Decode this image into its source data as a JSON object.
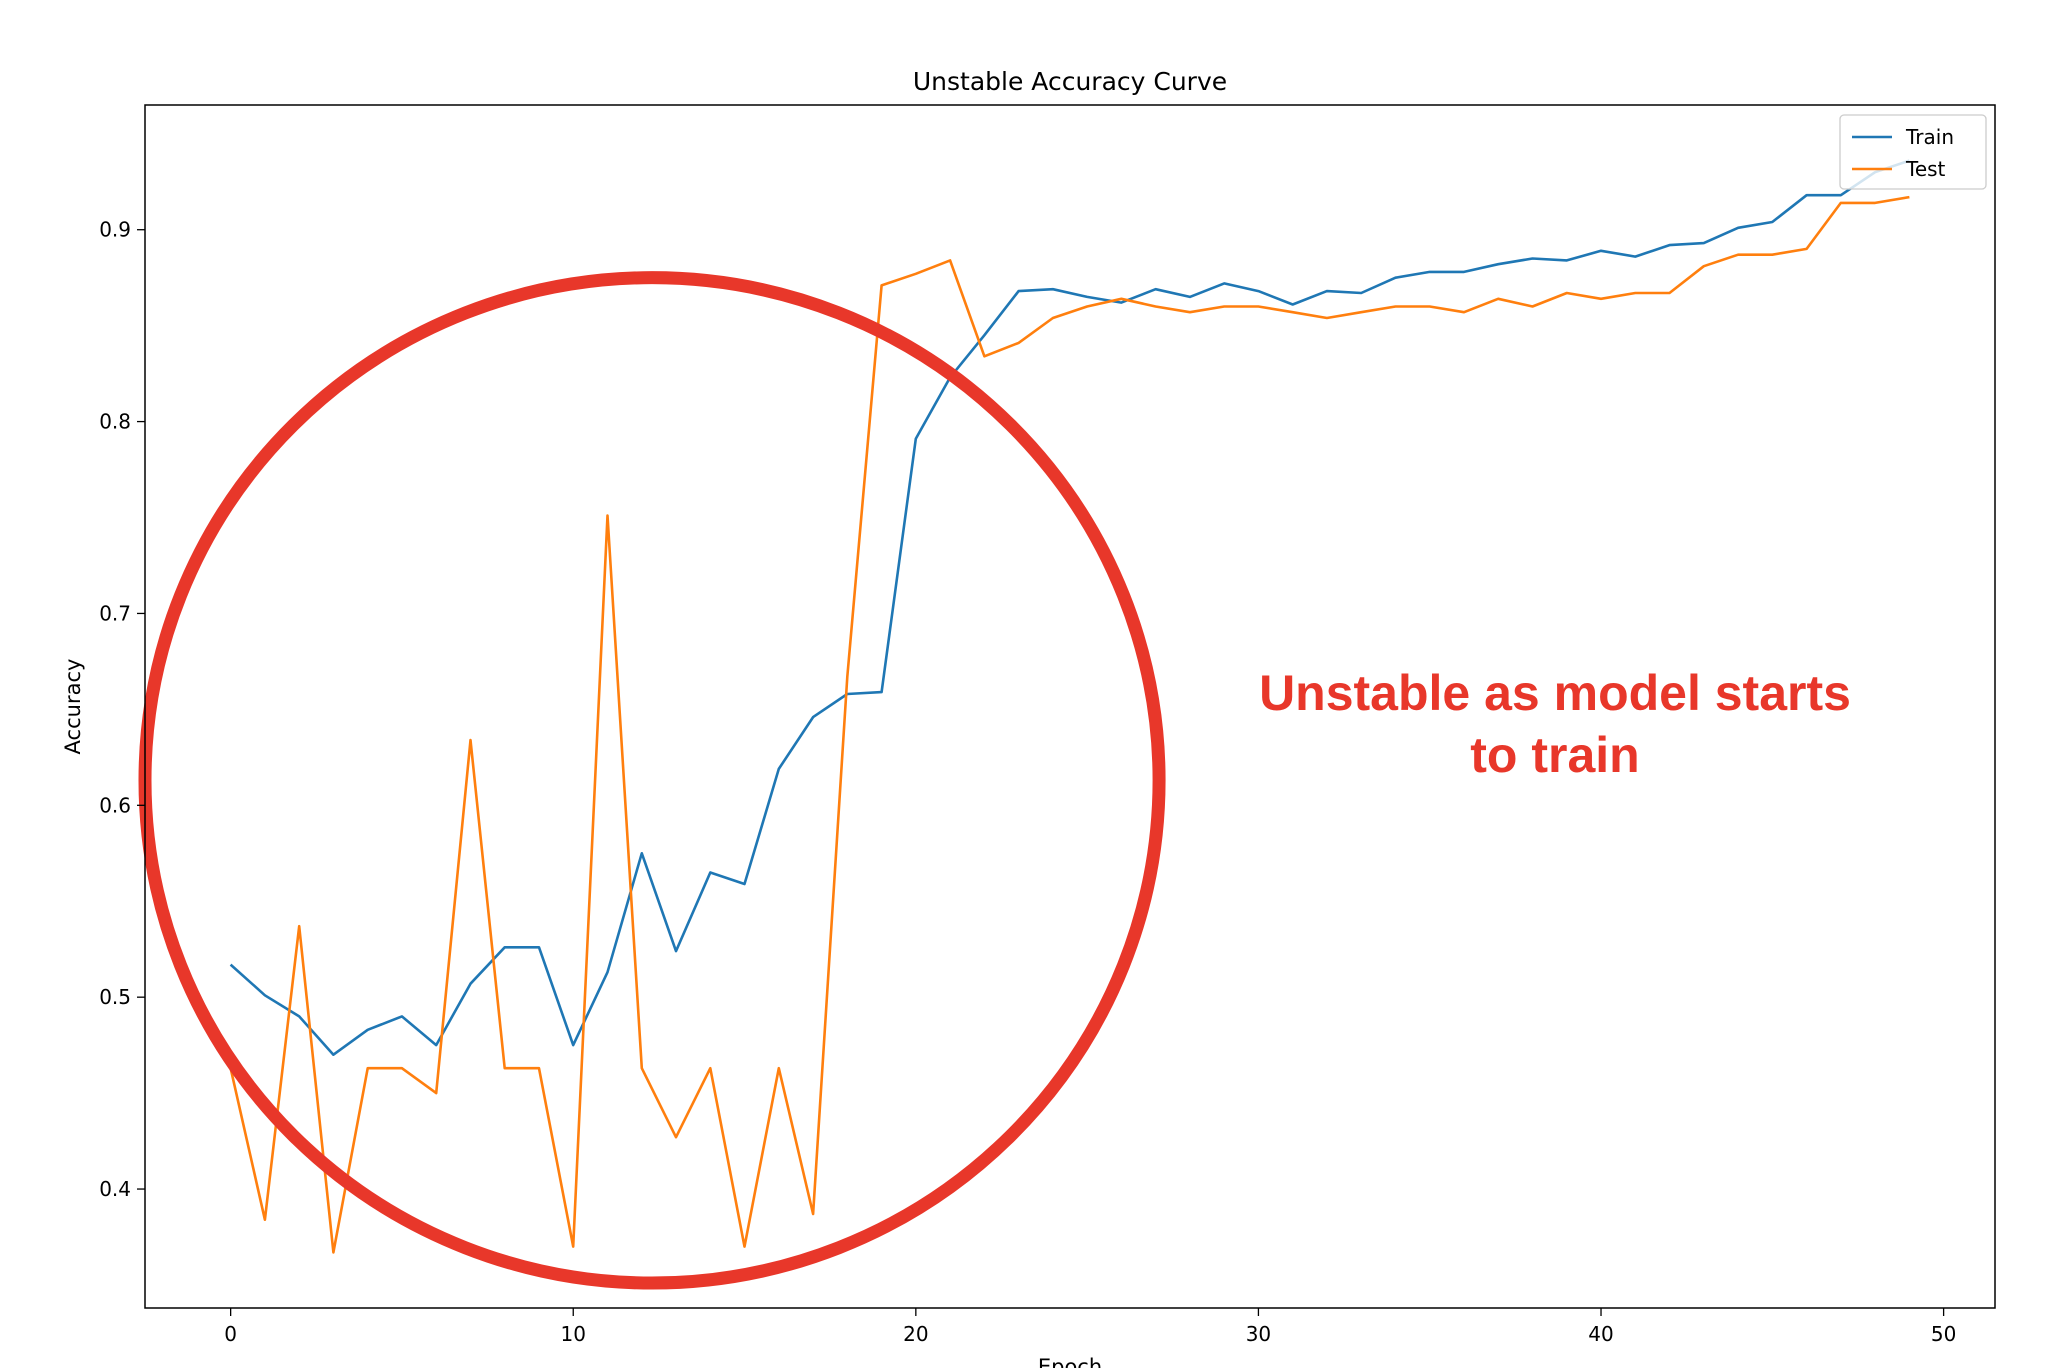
{
  "chart_data": {
    "type": "line",
    "title": "Unstable Accuracy Curve",
    "xlabel": "Epoch",
    "ylabel": "Accuracy",
    "xlim": [
      -2.5,
      51.5
    ],
    "ylim": [
      0.338,
      0.965
    ],
    "x_ticks": [
      0,
      10,
      20,
      30,
      40,
      50
    ],
    "y_ticks": [
      0.4,
      0.5,
      0.6,
      0.7,
      0.8,
      0.9
    ],
    "grid": false,
    "legend_position": "top-right",
    "x": [
      0,
      1,
      2,
      3,
      4,
      5,
      6,
      7,
      8,
      9,
      10,
      11,
      12,
      13,
      14,
      15,
      16,
      17,
      18,
      19,
      20,
      21,
      22,
      23,
      24,
      25,
      26,
      27,
      28,
      29,
      30,
      31,
      32,
      33,
      34,
      35,
      36,
      37,
      38,
      39,
      40,
      41,
      42,
      43,
      44,
      45,
      46,
      47,
      48,
      49
    ],
    "series": [
      {
        "name": "Train",
        "color": "#1f77b4",
        "values": [
          0.517,
          0.501,
          0.49,
          0.47,
          0.483,
          0.49,
          0.475,
          0.507,
          0.526,
          0.526,
          0.475,
          0.513,
          0.575,
          0.524,
          0.565,
          0.559,
          0.619,
          0.646,
          0.658,
          0.659,
          0.791,
          0.823,
          0.845,
          0.868,
          0.869,
          0.865,
          0.862,
          0.869,
          0.865,
          0.872,
          0.868,
          0.861,
          0.868,
          0.867,
          0.875,
          0.878,
          0.878,
          0.882,
          0.885,
          0.884,
          0.889,
          0.886,
          0.892,
          0.893,
          0.901,
          0.904,
          0.918,
          0.918,
          0.93,
          0.936
        ]
      },
      {
        "name": "Test",
        "color": "#ff7f0e",
        "values": [
          0.463,
          0.384,
          0.537,
          0.367,
          0.463,
          0.463,
          0.45,
          0.634,
          0.463,
          0.463,
          0.37,
          0.751,
          0.463,
          0.427,
          0.463,
          0.37,
          0.463,
          0.387,
          0.667,
          0.871,
          0.877,
          0.884,
          0.834,
          0.841,
          0.854,
          0.86,
          0.864,
          0.86,
          0.857,
          0.86,
          0.86,
          0.857,
          0.854,
          0.857,
          0.86,
          0.86,
          0.857,
          0.864,
          0.86,
          0.867,
          0.864,
          0.867,
          0.867,
          0.881,
          0.887,
          0.887,
          0.89,
          0.914,
          0.914,
          0.917
        ]
      }
    ],
    "annotation": {
      "text_line1": "Unstable as model starts",
      "text_line2": "to train",
      "color": "#e8372a",
      "circle_center": [
        12.3,
        0.613
      ],
      "circle_x_radius": 14.8,
      "circle_y_radius": 0.262
    }
  }
}
